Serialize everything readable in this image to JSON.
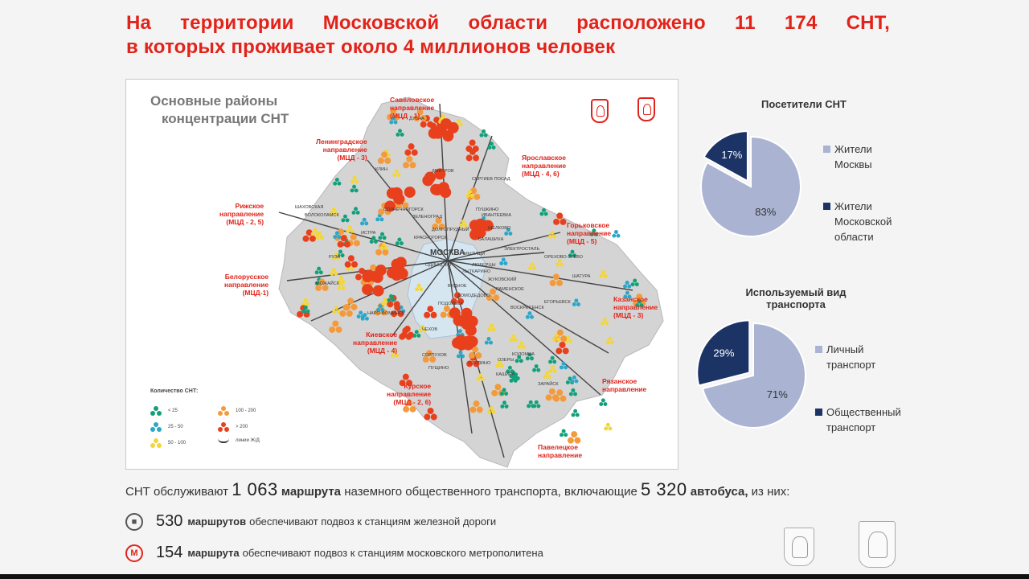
{
  "title": {
    "line1": "На территории Московской области расположено 11 174 СНТ,",
    "line2": "в которых проживает около 4 миллионов человек"
  },
  "map": {
    "title_line1": "Основные районы",
    "title_line2": "концентрации СНТ",
    "directions": [
      {
        "id": "savelovskoe",
        "lines": [
          "Савёловское",
          "направление",
          "(МЦД - 1)"
        ]
      },
      {
        "id": "leningradskoe",
        "lines": [
          "Ленинградское",
          "направление",
          "(МЦД - 3)"
        ]
      },
      {
        "id": "yaroslavskoe",
        "lines": [
          "Ярославское",
          "направление",
          "(МЦД - 4, 6)"
        ]
      },
      {
        "id": "rizhskoe",
        "lines": [
          "Рижское",
          "направление",
          "(МЦД - 2, 5)"
        ]
      },
      {
        "id": "gorkovskoe",
        "lines": [
          "Горьковское",
          "направление",
          "(МЦД - 5)"
        ]
      },
      {
        "id": "belorusskoe",
        "lines": [
          "Белорусское",
          "направление",
          "(МЦД-1)"
        ]
      },
      {
        "id": "kazanskoe",
        "lines": [
          "Казанское",
          "направление",
          "(МЦД - 3)"
        ]
      },
      {
        "id": "kievskoe",
        "lines": [
          "Киевское",
          "направление",
          "(МЦД - 4)"
        ]
      },
      {
        "id": "kurskoe",
        "lines": [
          "Курское",
          "направление",
          "(МЦД - 2, 6)"
        ]
      },
      {
        "id": "ryazanskoe",
        "lines": [
          "Рязанское",
          "направление"
        ]
      },
      {
        "id": "paveletskoe",
        "lines": [
          "Павелецкое",
          "направление"
        ]
      }
    ],
    "cities": [
      "ДУБНА",
      "КЛИН",
      "ДМИТРОВ",
      "СЕРГИЕВ ПОСАД",
      "СОЛНЕЧНОГОРСК",
      "ЗЕЛЕНОГРАД",
      "ПУШКИНО",
      "ИВАНТЕЕВКА",
      "ЩЕЛКОВО",
      "ШАХОВСКАЯ",
      "ВОЛОКОЛАМСК",
      "ИСТРА",
      "КРАСНОГОРСК",
      "ДОЛГОПРУДНЫЙ",
      "БАЛАШИХА",
      "ЭЛЕКТРОСТАЛЬ",
      "ОРЕХОВО-ЗУЕВО",
      "МОСКВА",
      "ОДИНЦОВО",
      "РУЗА",
      "МОЖАЙСК",
      "ЛЮБЕРЦЫ",
      "ЖУКОВСКИЙ",
      "РАМЕНСКОЕ",
      "ВОСКРЕСЕНСК",
      "ЕГОРЬЕВСК",
      "ШАТУРА",
      "ДОМОДЕДОВО",
      "ПОДОЛЬСК",
      "НАРО-ФОМИНСК",
      "ЧЕХОВ",
      "КОЛОМНА",
      "СЕРПУХОВ",
      "ПУЩИНО",
      "СТУПИНО",
      "ОЗЕРЫ",
      "КАШИРА",
      "ЗАРАЙСК",
      "МЫТИЩИ",
      "ЛЫТКАРИНО",
      "ВИДНОЕ"
    ],
    "legend": {
      "title": "Количество СНТ:",
      "items": [
        {
          "label": "< 25",
          "color": "#12a07a"
        },
        {
          "label": "25 - 50",
          "color": "#2aa7c9"
        },
        {
          "label": "50 - 100",
          "color": "#f3d63a"
        },
        {
          "label": "100 - 200",
          "color": "#f39b3c"
        },
        {
          "label": "> 200",
          "color": "#e8401c"
        },
        {
          "label": "линии Ж/Д",
          "color": "#333333"
        }
      ]
    }
  },
  "chart_data": [
    {
      "type": "pie",
      "title": "Посетители СНТ",
      "categories": [
        "Жители Москвы",
        "Жители Московской области"
      ],
      "values": [
        83,
        17
      ],
      "labels": [
        "83%",
        "17%"
      ],
      "colors": [
        "#aab4d2",
        "#1c3366"
      ],
      "legend_lines": [
        [
          "Жители",
          "Москвы"
        ],
        [
          "Жители",
          "Московской",
          "области"
        ]
      ]
    },
    {
      "type": "pie",
      "title_lines": [
        "Используемый вид",
        "транспорта"
      ],
      "categories": [
        "Личный транспорт",
        "Общественный транспорт"
      ],
      "values": [
        71,
        29
      ],
      "labels": [
        "71%",
        "29%"
      ],
      "colors": [
        "#aab4d2",
        "#1c3366"
      ],
      "legend_lines": [
        [
          "Личный",
          "транспорт"
        ],
        [
          "Общественный",
          "транспорт"
        ]
      ]
    }
  ],
  "footer": {
    "main": {
      "prefix": "СНТ обслуживают ",
      "num1": "1 063",
      "bold1": " маршрута",
      "mid": " наземного общественного транспорта, включающие ",
      "num2": "5 320",
      "bold2": " автобуса,",
      "suffix": " из них:"
    },
    "line1": {
      "num": "530",
      "bold": "маршрутов",
      "text": "обеспечивают подвоз к станциям железной дороги",
      "icon": "bus-icon"
    },
    "line2": {
      "num": "154",
      "bold": "маршрута",
      "text": "обеспечивают подвоз к станциям московского метрополитена",
      "icon": "metro-icon",
      "icon_glyph": "M"
    }
  },
  "colors": {
    "accent": "#e2231a",
    "pie_dark": "#1c3366",
    "pie_light": "#aab4d2"
  }
}
